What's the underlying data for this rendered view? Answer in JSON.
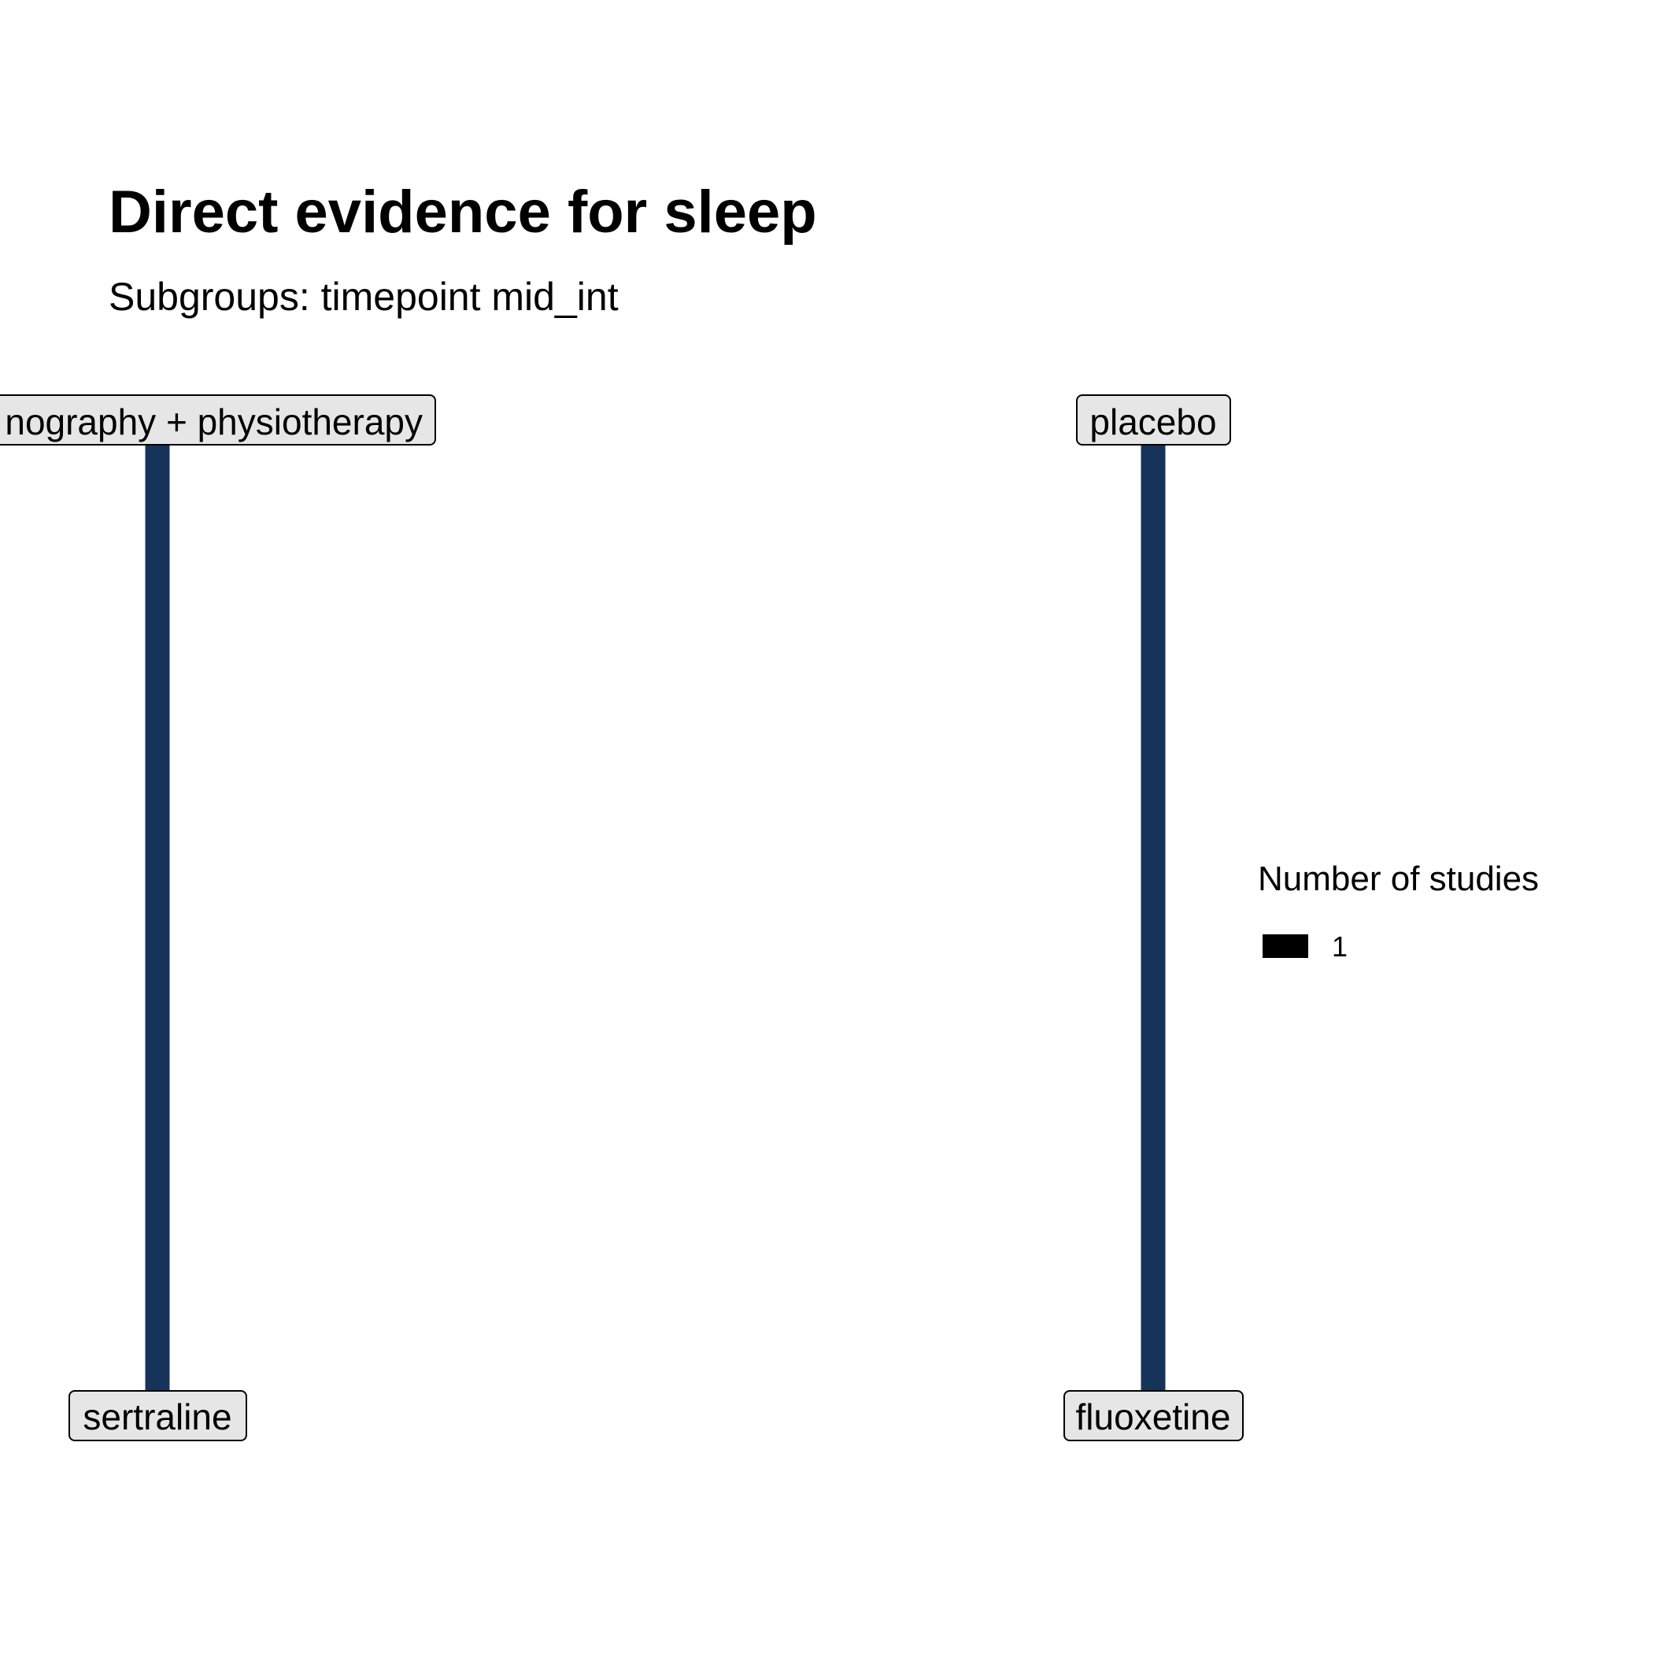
{
  "title": "Direct evidence for sleep",
  "subtitle": "Subgroups: timepoint mid_int",
  "colors": {
    "edge": "#16345a",
    "node_fill": "#e6e6e6",
    "node_border": "#000000",
    "background": "#ffffff"
  },
  "nodes": [
    {
      "id": "n1",
      "label": "...nography + physiotherapy",
      "visible_text": "nography + physiotherapy"
    },
    {
      "id": "n2",
      "label": "sertraline",
      "visible_text": "sertraline"
    },
    {
      "id": "n3",
      "label": "placebo",
      "visible_text": "placebo"
    },
    {
      "id": "n4",
      "label": "fluoxetine",
      "visible_text": "fluoxetine"
    }
  ],
  "edges": [
    {
      "from": "n1",
      "to": "n2",
      "studies": 1
    },
    {
      "from": "n3",
      "to": "n4",
      "studies": 1
    }
  ],
  "legend": {
    "title": "Number of studies",
    "entries": [
      {
        "label": "1",
        "color": "#000000"
      }
    ]
  }
}
